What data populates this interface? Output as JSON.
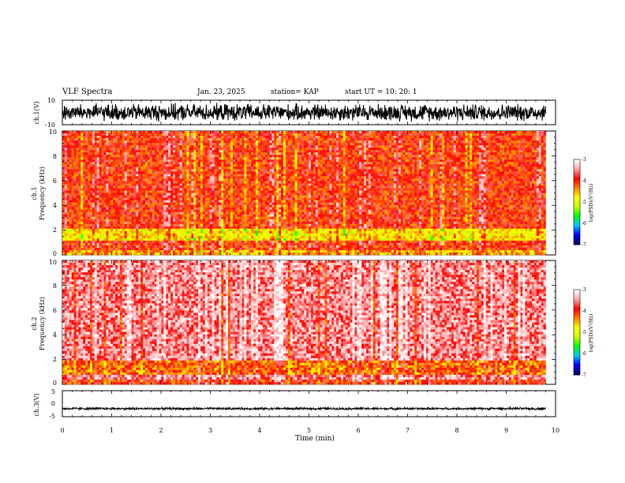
{
  "header": {
    "title": "VLF Spectra",
    "date": "Jan. 23, 2025",
    "station": "station= KAP",
    "start": "start  UT  =   10: 20: 1"
  },
  "colors": {
    "background": "#ffffff",
    "text": "#000000",
    "trace": "#000000",
    "colormap": [
      "#000060",
      "#0000ff",
      "#00c8ff",
      "#00ff00",
      "#c8ff00",
      "#ffff00",
      "#ff8000",
      "#ff0000",
      "#ffa0a0",
      "#ffffff"
    ]
  },
  "chart_data": [
    {
      "type": "line",
      "panel": "ch1-waveform",
      "ylabel": "ch.1(V)",
      "ylim": [
        -10,
        10
      ],
      "yticks": [
        "10",
        "-10"
      ],
      "x": [
        0,
        1,
        2,
        3,
        4,
        5,
        6,
        7,
        8,
        9,
        9.8
      ],
      "y_band": {
        "typical_min": -8,
        "typical_max": 8
      },
      "grid": false
    },
    {
      "type": "heatmap",
      "panel": "ch1-spectrogram",
      "ylabel": "ch.1\nFrequency (kHz)",
      "ylim": [
        0,
        10
      ],
      "yticks": [
        "0",
        "2",
        "4",
        "6",
        "8",
        "10"
      ],
      "xlim": [
        0,
        9.8
      ],
      "colorbar": {
        "label": "log(PSD)(V²/Hz)",
        "range": [
          -7,
          -3
        ],
        "ticks": [
          "-3",
          "-4",
          "-5",
          "-6",
          "-7"
        ]
      },
      "dominant_level": -4,
      "enhanced_band_khz": [
        1.2,
        2.2
      ],
      "grid": false
    },
    {
      "type": "heatmap",
      "panel": "ch2-spectrogram",
      "ylabel": "ch.2\nFrequency (kHz)",
      "ylim": [
        0,
        10
      ],
      "yticks": [
        "0",
        "2",
        "4",
        "6",
        "8",
        "10"
      ],
      "xlim": [
        0,
        9.8
      ],
      "colorbar": {
        "label": "log(PSD)(V²/Hz)",
        "range": [
          -7,
          -3
        ],
        "ticks": [
          "-3",
          "-4",
          "-5",
          "-6",
          "-7"
        ]
      },
      "dominant_level": -3.5,
      "enhanced_band_khz": [
        0.8,
        2.0
      ],
      "grid": false
    },
    {
      "type": "line",
      "panel": "ch3-waveform",
      "ylabel": "ch.3(V)",
      "ylim": [
        -5,
        5
      ],
      "yticks": [
        "5",
        "0",
        "-5"
      ],
      "x": [
        0,
        9.8
      ],
      "y_band": {
        "typical_min": -2.4,
        "typical_max": -1.4
      },
      "xlabel": "Time (min)",
      "xlim": [
        0,
        10
      ],
      "xticks": [
        "0",
        "1",
        "2",
        "3",
        "4",
        "5",
        "6",
        "7",
        "8",
        "9",
        "10"
      ],
      "grid": false
    }
  ]
}
